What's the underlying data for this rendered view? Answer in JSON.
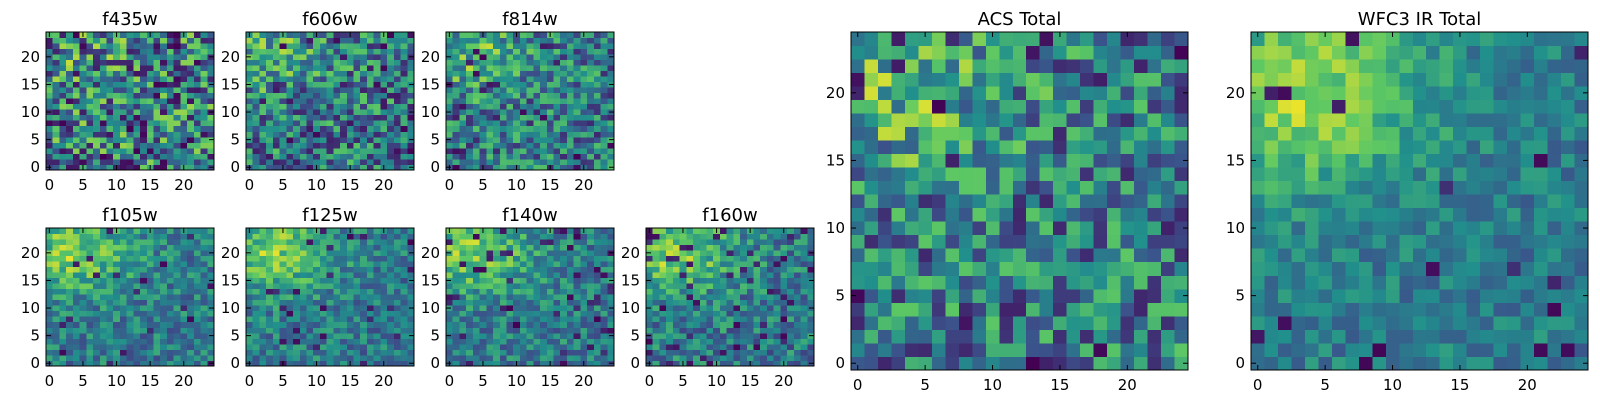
{
  "chart_data": {
    "type": "heatmap",
    "colormap": [
      "#440154",
      "#3b528b",
      "#21908c",
      "#5dc863",
      "#fde725"
    ],
    "panels": [
      {
        "title": "f435w",
        "kind": "grid",
        "x_ticks": [
          "0",
          "5",
          "10",
          "15",
          "20"
        ],
        "y_ticks": [
          "0",
          "5",
          "10",
          "15",
          "20"
        ],
        "xlim": [
          -0.5,
          24.5
        ],
        "ylim": [
          -0.5,
          24.5
        ],
        "cells": 25,
        "seed": 11,
        "blob": 0.15,
        "noise": 0.85,
        "dark": 0.05
      },
      {
        "title": "f606w",
        "kind": "grid",
        "x_ticks": [
          "0",
          "5",
          "10",
          "15",
          "20"
        ],
        "y_ticks": [
          "0",
          "5",
          "10",
          "15",
          "20"
        ],
        "xlim": [
          -0.5,
          24.5
        ],
        "ylim": [
          -0.5,
          24.5
        ],
        "cells": 25,
        "seed": 23,
        "blob": 0.35,
        "noise": 0.65,
        "dark": 0.06
      },
      {
        "title": "f814w",
        "kind": "grid",
        "x_ticks": [
          "0",
          "5",
          "10",
          "15",
          "20"
        ],
        "y_ticks": [
          "0",
          "5",
          "10",
          "15",
          "20"
        ],
        "xlim": [
          -0.5,
          24.5
        ],
        "ylim": [
          -0.5,
          24.5
        ],
        "cells": 25,
        "seed": 37,
        "blob": 0.4,
        "noise": 0.6,
        "dark": 0.05
      },
      {
        "title": "f105w",
        "kind": "grid",
        "x_ticks": [
          "0",
          "5",
          "10",
          "15",
          "20"
        ],
        "y_ticks": [
          "0",
          "5",
          "10",
          "15",
          "20"
        ],
        "xlim": [
          -0.5,
          24.5
        ],
        "ylim": [
          -0.5,
          24.5
        ],
        "cells": 25,
        "seed": 41,
        "blob": 0.6,
        "noise": 0.4,
        "dark": 0.04
      },
      {
        "title": "f125w",
        "kind": "grid",
        "x_ticks": [
          "0",
          "5",
          "10",
          "15",
          "20"
        ],
        "y_ticks": [
          "0",
          "5",
          "10",
          "15",
          "20"
        ],
        "xlim": [
          -0.5,
          24.5
        ],
        "ylim": [
          -0.5,
          24.5
        ],
        "cells": 25,
        "seed": 53,
        "blob": 0.6,
        "noise": 0.4,
        "dark": 0.05
      },
      {
        "title": "f140w",
        "kind": "grid",
        "x_ticks": [
          "0",
          "5",
          "10",
          "15",
          "20"
        ],
        "y_ticks": [
          "0",
          "5",
          "10",
          "15",
          "20"
        ],
        "xlim": [
          -0.5,
          24.5
        ],
        "ylim": [
          -0.5,
          24.5
        ],
        "cells": 25,
        "seed": 67,
        "blob": 0.6,
        "noise": 0.4,
        "dark": 0.06
      },
      {
        "title": "f160w",
        "kind": "grid",
        "x_ticks": [
          "0",
          "5",
          "10",
          "15",
          "20"
        ],
        "y_ticks": [
          "0",
          "5",
          "10",
          "15",
          "20"
        ],
        "xlim": [
          -0.5,
          24.5
        ],
        "ylim": [
          -0.5,
          24.5
        ],
        "cells": 25,
        "seed": 79,
        "blob": 0.6,
        "noise": 0.45,
        "dark": 0.09
      },
      {
        "title": "ACS Total",
        "kind": "large",
        "x_ticks": [
          "0",
          "5",
          "10",
          "15",
          "20"
        ],
        "y_ticks": [
          "0",
          "5",
          "10",
          "15",
          "20"
        ],
        "xlim": [
          -0.5,
          24.5
        ],
        "ylim": [
          -0.5,
          24.5
        ],
        "cells": 25,
        "seed": 97,
        "blob": 0.35,
        "noise": 0.65,
        "dark": 0.04
      },
      {
        "title": "WFC3 IR Total",
        "kind": "large",
        "x_ticks": [
          "0",
          "5",
          "10",
          "15",
          "20"
        ],
        "y_ticks": [
          "0",
          "5",
          "10",
          "15",
          "20"
        ],
        "xlim": [
          -0.5,
          24.5
        ],
        "ylim": [
          -0.5,
          24.5
        ],
        "cells": 25,
        "seed": 113,
        "blob": 0.7,
        "noise": 0.3,
        "dark": 0.03
      }
    ]
  }
}
